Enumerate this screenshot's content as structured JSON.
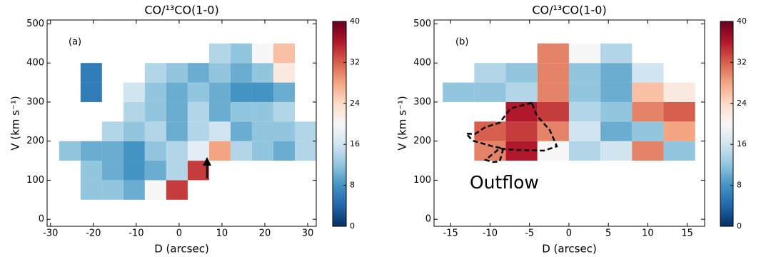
{
  "chart_data": [
    {
      "type": "heatmap",
      "title": "CO/¹³CO(1-0)",
      "x_label": "D (arcsec)",
      "y_label": "V (km s⁻¹)",
      "annotation": "(a)",
      "xlim": [
        -30.8,
        32
      ],
      "ylim": [
        -18,
        510
      ],
      "xticks": [
        -30,
        -20,
        -10,
        0,
        10,
        20,
        30
      ],
      "yticks": [
        0,
        100,
        200,
        300,
        400,
        500
      ],
      "xbins": [
        -28,
        -23,
        -18,
        -13,
        -8,
        -3,
        2,
        7,
        12,
        17,
        22,
        27,
        32
      ],
      "ybins": [
        50,
        100,
        150,
        200,
        250,
        300,
        350,
        400,
        450
      ],
      "z": [
        [
          null,
          12,
          12,
          10,
          20,
          34,
          null,
          null,
          null,
          null,
          null,
          null
        ],
        [
          null,
          12,
          10,
          8,
          10,
          14,
          34,
          null,
          null,
          null,
          null,
          null
        ],
        [
          12,
          10,
          10,
          8,
          12,
          14,
          18,
          28,
          14,
          12,
          10,
          14
        ],
        [
          null,
          null,
          14,
          12,
          14,
          10,
          14,
          16,
          10,
          12,
          12,
          14
        ],
        [
          null,
          null,
          null,
          14,
          12,
          10,
          14,
          10,
          12,
          12,
          14,
          null
        ],
        [
          null,
          6,
          null,
          16,
          12,
          10,
          12,
          10,
          8,
          8,
          10,
          null
        ],
        [
          null,
          6,
          null,
          null,
          14,
          12,
          10,
          12,
          10,
          12,
          22,
          null
        ],
        [
          null,
          null,
          null,
          null,
          null,
          null,
          null,
          14,
          12,
          20,
          26,
          null
        ]
      ],
      "zlim": [
        0,
        40
      ],
      "colorbar_ticks": [
        0,
        8,
        16,
        24,
        32,
        40
      ],
      "colorscale": [
        "#053061",
        "#2166ac",
        "#4393c3",
        "#92c5de",
        "#d1e5f0",
        "#f7f7f7",
        "#fddbc7",
        "#f4a582",
        "#d6604d",
        "#b2182b",
        "#67001f"
      ]
    },
    {
      "type": "heatmap",
      "title": "CO/¹³CO(1-0)",
      "x_label": "D (arcsec)",
      "y_label": "V (km s⁻¹)",
      "annotation": "(b)",
      "label": "Outflow",
      "xlim": [
        -17.1,
        17.2
      ],
      "ylim": [
        -18,
        510
      ],
      "xticks": [
        -15,
        -10,
        -5,
        0,
        5,
        10,
        15
      ],
      "yticks": [
        0,
        100,
        200,
        300,
        400,
        500
      ],
      "xbins": [
        -16,
        -12,
        -8,
        -4,
        0,
        4,
        8,
        12,
        16
      ],
      "ybins": [
        150,
        200,
        250,
        300,
        350,
        400,
        450
      ],
      "z": [
        [
          null,
          30,
          36,
          20,
          14,
          16,
          30,
          12
        ],
        [
          null,
          32,
          34,
          30,
          16,
          10,
          12,
          28
        ],
        [
          null,
          null,
          36,
          34,
          14,
          12,
          30,
          32
        ],
        [
          12,
          12,
          14,
          30,
          12,
          10,
          26,
          22
        ],
        [
          null,
          14,
          12,
          30,
          12,
          10,
          16,
          null
        ],
        [
          null,
          null,
          null,
          30,
          20,
          14,
          null,
          null
        ]
      ],
      "zlim": [
        0,
        40
      ],
      "colorbar_ticks": [
        0,
        8,
        16,
        24,
        32,
        40
      ],
      "colorscale": [
        "#053061",
        "#2166ac",
        "#4393c3",
        "#92c5de",
        "#d1e5f0",
        "#f7f7f7",
        "#fddbc7",
        "#f4a582",
        "#d6604d",
        "#b2182b",
        "#67001f"
      ]
    }
  ]
}
